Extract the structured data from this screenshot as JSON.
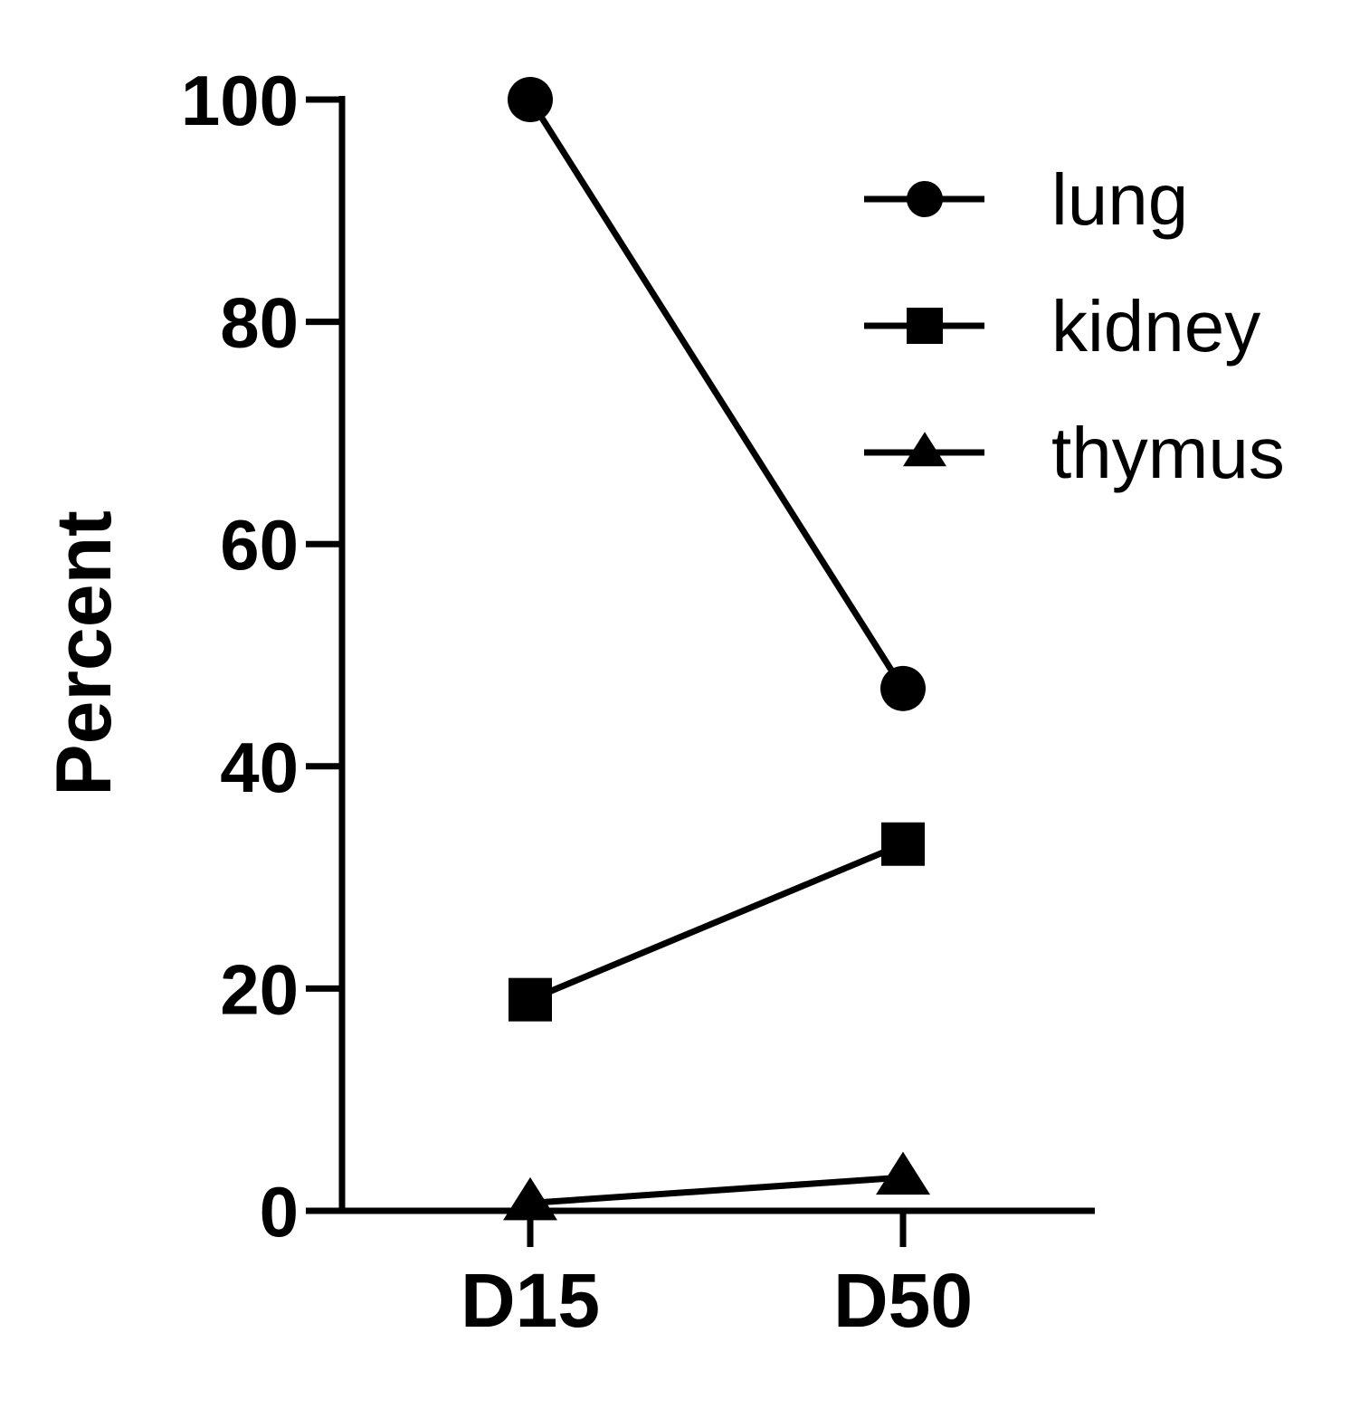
{
  "chart_data": {
    "type": "line",
    "title": "",
    "xlabel": "",
    "ylabel": "Percent",
    "categories": [
      "D15",
      "D50"
    ],
    "ylim": [
      0,
      100
    ],
    "yticks": [
      0,
      20,
      40,
      60,
      80,
      100
    ],
    "grid": false,
    "legend_position": "top-right",
    "series": [
      {
        "name": "lung",
        "marker": "circle",
        "values": [
          100,
          47
        ]
      },
      {
        "name": "kidney",
        "marker": "square",
        "values": [
          19,
          33
        ]
      },
      {
        "name": "thymus",
        "marker": "triangle",
        "values": [
          0.7,
          3
        ]
      }
    ]
  }
}
